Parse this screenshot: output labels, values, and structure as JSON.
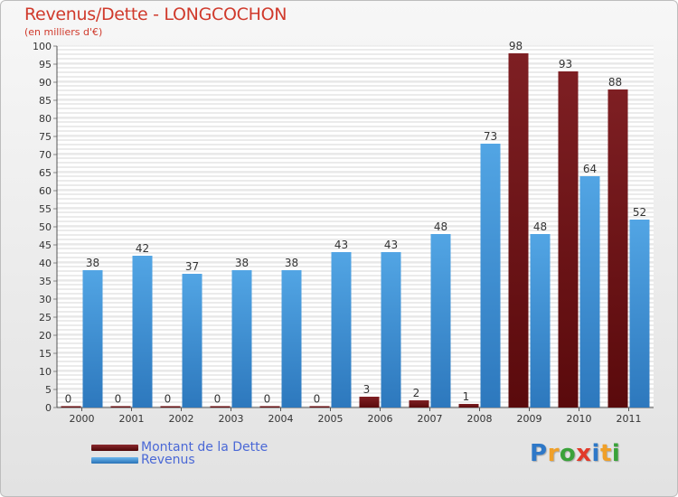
{
  "colors": {
    "debt": "#7e1f23",
    "debt_dark": "#5a0a0c",
    "revenue": "#52a5e4",
    "revenue_dark": "#2d78bd",
    "title": "#d03a2c",
    "legend_text": "#4a68d6"
  },
  "chart_data": {
    "type": "bar",
    "title": "Revenus/Dette - LONGCOCHON",
    "subtitle": "(en milliers d'€)",
    "xlabel": "",
    "ylabel": "",
    "ylim": [
      0,
      100
    ],
    "yticks": [
      0,
      5,
      10,
      15,
      20,
      25,
      30,
      35,
      40,
      45,
      50,
      55,
      60,
      65,
      70,
      75,
      80,
      85,
      90,
      95,
      100
    ],
    "categories": [
      "2000",
      "2001",
      "2002",
      "2003",
      "2004",
      "2005",
      "2006",
      "2007",
      "2008",
      "2009",
      "2010",
      "2011"
    ],
    "series": [
      {
        "name": "Montant de la Dette",
        "values": [
          0,
          0,
          0,
          0,
          0,
          0,
          3,
          2,
          1,
          98,
          93,
          88
        ]
      },
      {
        "name": "Revenus",
        "values": [
          38,
          42,
          37,
          38,
          38,
          43,
          43,
          48,
          73,
          48,
          64,
          52
        ]
      }
    ]
  },
  "brand": {
    "letters": [
      "P",
      "r",
      "o",
      "x",
      "i",
      "t",
      "i"
    ],
    "letter_colors": [
      "#2e78c8",
      "#f0a028",
      "#3aa23a",
      "#e23a2a",
      "#2e78c8",
      "#f0a028",
      "#3aa23a"
    ]
  }
}
